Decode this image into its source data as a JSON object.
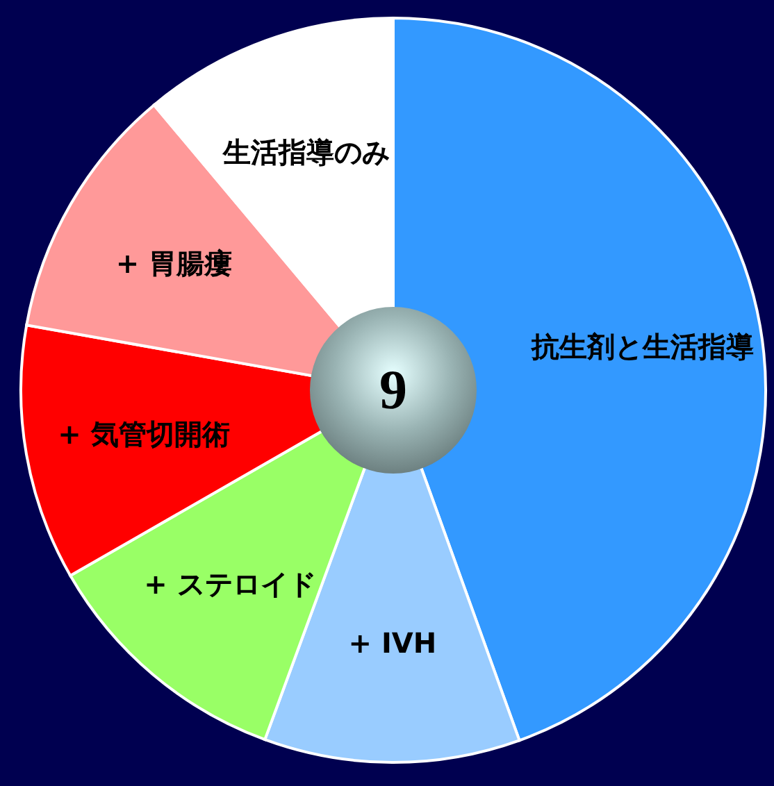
{
  "chart_data": {
    "type": "pie",
    "categories": [
      "抗生剤と生活指導",
      "+ IVH",
      "+ ステロイド",
      "+ 気管切開術",
      "+ 胃腸瘻",
      "生活指導のみ"
    ],
    "values": [
      44.5,
      11.1,
      11.1,
      11.1,
      11.1,
      11.1
    ],
    "colors": [
      "#3399ff",
      "#99ccff",
      "#99ff66",
      "#ff0000",
      "#ff9999",
      "#ffffff"
    ],
    "annotations": [
      "9"
    ],
    "legend": false
  }
}
